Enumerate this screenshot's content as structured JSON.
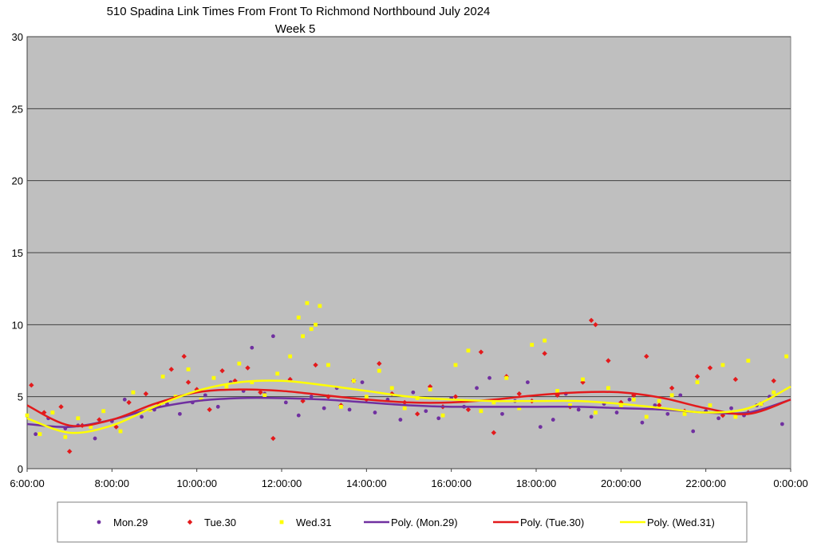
{
  "chart_data": {
    "type": "scatter",
    "title": "510 Spadina Link Times From Front To Richmond Northbound July 2024",
    "subtitle": "Week 5",
    "xlabel": "",
    "ylabel": "",
    "xlim": [
      6,
      24
    ],
    "ylim": [
      0,
      30
    ],
    "x_ticks": [
      "6:00:00",
      "8:00:00",
      "10:00:00",
      "12:00:00",
      "14:00:00",
      "16:00:00",
      "18:00:00",
      "20:00:00",
      "22:00:00",
      "0:00:00"
    ],
    "y_ticks": [
      "0",
      "5",
      "10",
      "15",
      "20",
      "25",
      "30"
    ],
    "grid": "horizontal",
    "legend_position": "bottom",
    "colors": {
      "mon": "#7030a0",
      "tue": "#e31a1c",
      "wed": "#ffff00",
      "plot_bg": "#bfbfbf"
    },
    "series": [
      {
        "name": "Mon.29",
        "kind": "points",
        "color": "#7030a0",
        "marker": "circle",
        "x": [
          6.2,
          6.5,
          6.9,
          7.2,
          7.6,
          8.0,
          8.3,
          8.7,
          9.0,
          9.3,
          9.6,
          9.9,
          10.2,
          10.5,
          10.8,
          11.1,
          11.3,
          11.6,
          11.8,
          12.1,
          12.4,
          12.7,
          13.0,
          13.3,
          13.6,
          13.9,
          14.2,
          14.5,
          14.8,
          15.1,
          15.4,
          15.7,
          16.0,
          16.3,
          16.6,
          16.9,
          17.2,
          17.5,
          17.8,
          18.1,
          18.4,
          18.7,
          19.0,
          19.3,
          19.6,
          19.9,
          20.2,
          20.5,
          20.8,
          21.1,
          21.4,
          21.7,
          22.0,
          22.3,
          22.6,
          22.9,
          23.2,
          23.5,
          23.8
        ],
        "y": [
          2.4,
          3.5,
          2.8,
          3.0,
          2.1,
          3.3,
          4.8,
          3.6,
          4.1,
          4.5,
          3.8,
          4.6,
          5.1,
          4.3,
          6.0,
          5.4,
          8.4,
          5.2,
          9.2,
          4.6,
          3.7,
          5.0,
          4.2,
          5.6,
          4.1,
          6.0,
          3.9,
          4.8,
          3.4,
          5.3,
          4.0,
          3.5,
          4.9,
          4.3,
          5.6,
          6.3,
          3.8,
          4.7,
          6.0,
          2.9,
          3.4,
          5.2,
          4.1,
          3.6,
          4.5,
          3.9,
          4.8,
          3.2,
          4.4,
          3.8,
          5.1,
          2.6,
          4.0,
          3.5,
          4.2,
          3.7,
          4.4,
          5.0,
          3.1
        ]
      },
      {
        "name": "Tue.30",
        "kind": "points",
        "color": "#e31a1c",
        "marker": "diamond",
        "x": [
          6.1,
          6.4,
          6.8,
          7.0,
          7.3,
          7.7,
          8.1,
          8.4,
          8.8,
          9.1,
          9.4,
          9.7,
          9.8,
          10.0,
          10.3,
          10.6,
          10.9,
          11.2,
          11.5,
          11.8,
          12.2,
          12.5,
          12.8,
          13.1,
          13.4,
          13.7,
          14.0,
          14.3,
          14.6,
          14.9,
          15.2,
          15.5,
          15.8,
          16.1,
          16.4,
          16.7,
          17.0,
          17.3,
          17.6,
          17.9,
          18.2,
          18.5,
          18.8,
          19.1,
          19.3,
          19.4,
          19.7,
          20.0,
          20.3,
          20.6,
          20.9,
          21.2,
          21.5,
          21.8,
          22.1,
          22.4,
          22.7,
          23.0,
          23.3,
          23.6
        ],
        "y": [
          5.8,
          3.9,
          4.3,
          1.2,
          3.0,
          3.4,
          2.9,
          4.6,
          5.2,
          4.4,
          6.9,
          7.8,
          6.0,
          5.5,
          4.1,
          6.8,
          6.1,
          7.0,
          5.3,
          2.1,
          6.2,
          4.7,
          7.2,
          5.0,
          4.4,
          6.1,
          4.8,
          7.3,
          5.2,
          4.6,
          3.8,
          5.7,
          4.3,
          5.0,
          4.1,
          8.1,
          2.5,
          6.4,
          5.2,
          4.7,
          8.0,
          5.1,
          4.3,
          6.0,
          10.3,
          10.0,
          7.5,
          4.6,
          5.1,
          7.8,
          4.4,
          5.6,
          4.0,
          6.4,
          7.0,
          3.7,
          6.2,
          3.9,
          4.5,
          6.1
        ]
      },
      {
        "name": "Wed.31",
        "kind": "points",
        "color": "#ffff00",
        "marker": "square",
        "x": [
          6.0,
          6.3,
          6.6,
          6.9,
          7.2,
          7.5,
          7.8,
          8.2,
          8.5,
          8.9,
          9.2,
          9.5,
          9.8,
          10.1,
          10.4,
          10.7,
          11.0,
          11.3,
          11.6,
          11.9,
          12.2,
          12.4,
          12.5,
          12.6,
          12.7,
          12.8,
          12.9,
          13.1,
          13.4,
          13.7,
          14.0,
          14.3,
          14.6,
          14.9,
          15.2,
          15.5,
          15.8,
          16.1,
          16.4,
          16.7,
          17.0,
          17.3,
          17.6,
          17.9,
          18.2,
          18.5,
          18.8,
          19.1,
          19.4,
          19.7,
          20.0,
          20.3,
          20.6,
          20.9,
          21.2,
          21.5,
          21.8,
          22.1,
          22.4,
          22.7,
          23.0,
          23.3,
          23.6,
          23.9
        ],
        "y": [
          3.7,
          2.4,
          3.9,
          2.2,
          3.5,
          2.9,
          4.0,
          2.6,
          5.3,
          4.1,
          6.4,
          5.0,
          6.9,
          4.8,
          6.3,
          5.7,
          7.3,
          6.0,
          5.1,
          6.6,
          7.8,
          10.5,
          9.2,
          11.5,
          9.7,
          10.0,
          11.3,
          7.2,
          4.3,
          6.1,
          5.0,
          6.8,
          5.6,
          4.2,
          4.9,
          5.5,
          3.7,
          7.2,
          8.2,
          4.0,
          4.6,
          6.3,
          4.2,
          8.6,
          8.9,
          5.4,
          4.4,
          6.2,
          3.9,
          5.6,
          4.3,
          4.8,
          3.6,
          4.7,
          5.1,
          3.8,
          6.0,
          4.4,
          7.2,
          3.6,
          7.5,
          4.5,
          5.3,
          7.8
        ]
      },
      {
        "name": "Poly. (Mon.29)",
        "kind": "trend",
        "color": "#7030a0",
        "x": [
          6,
          7,
          8,
          9,
          10,
          11,
          12,
          13,
          14,
          15,
          16,
          17,
          18,
          19,
          20,
          21,
          22,
          23,
          24
        ],
        "y": [
          3.1,
          2.9,
          3.4,
          4.2,
          4.7,
          4.9,
          4.9,
          4.8,
          4.6,
          4.4,
          4.3,
          4.3,
          4.3,
          4.3,
          4.2,
          4.1,
          3.9,
          3.9,
          4.8
        ]
      },
      {
        "name": "Poly. (Tue.30)",
        "kind": "trend",
        "color": "#e31a1c",
        "x": [
          6,
          7,
          8,
          9,
          10,
          11,
          12,
          13,
          14,
          15,
          16,
          17,
          18,
          19,
          20,
          21,
          22,
          23,
          24
        ],
        "y": [
          4.4,
          3.0,
          3.4,
          4.5,
          5.3,
          5.5,
          5.4,
          5.1,
          4.8,
          4.6,
          4.6,
          4.8,
          5.1,
          5.3,
          5.3,
          4.9,
          4.2,
          3.8,
          4.8
        ]
      },
      {
        "name": "Poly. (Wed.31)",
        "kind": "trend",
        "color": "#ffff00",
        "x": [
          6,
          7,
          8,
          9,
          10,
          11,
          12,
          13,
          14,
          15,
          16,
          17,
          18,
          19,
          20,
          21,
          22,
          23,
          24
        ],
        "y": [
          3.5,
          2.5,
          3.0,
          4.3,
          5.4,
          6.0,
          6.1,
          5.8,
          5.4,
          5.0,
          4.8,
          4.7,
          4.7,
          4.7,
          4.5,
          4.2,
          3.9,
          4.2,
          5.7
        ]
      }
    ]
  }
}
